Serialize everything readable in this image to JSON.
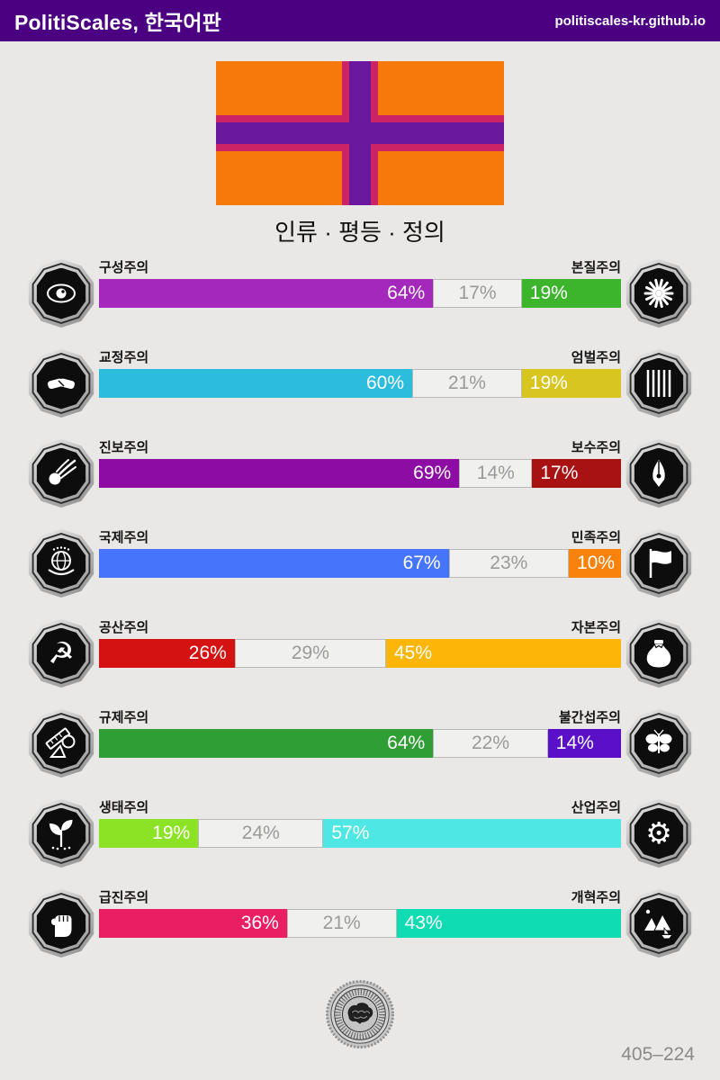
{
  "header": {
    "title": "PolitiScales, 한국어판",
    "url": "politiscales-kr.github.io"
  },
  "flag": {
    "field_color": "#f8790b",
    "cross_color": "#6a189e",
    "cross_border_color": "#cc2366"
  },
  "subtitle": "인류 · 평등 · 정의",
  "axes": [
    {
      "left": {
        "label": "구성주의",
        "percent": 64,
        "percent_label": "64%",
        "color": "#a428bc",
        "icon": "eye-icon"
      },
      "mid": {
        "percent": 17,
        "percent_label": "17%"
      },
      "right": {
        "label": "본질주의",
        "percent": 19,
        "percent_label": "19%",
        "color": "#3cb42c",
        "icon": "chrysanthemum-icon"
      }
    },
    {
      "left": {
        "label": "교정주의",
        "percent": 60,
        "percent_label": "60%",
        "color": "#2cbcdc",
        "icon": "handshake-icon"
      },
      "mid": {
        "percent": 21,
        "percent_label": "21%"
      },
      "right": {
        "label": "엄벌주의",
        "percent": 19,
        "percent_label": "19%",
        "color": "#d9c51f",
        "icon": "prison-bars-icon"
      }
    },
    {
      "left": {
        "label": "진보주의",
        "percent": 69,
        "percent_label": "69%",
        "color": "#8d0ca4",
        "icon": "comet-icon"
      },
      "mid": {
        "percent": 14,
        "percent_label": "14%"
      },
      "right": {
        "label": "보수주의",
        "percent": 17,
        "percent_label": "17%",
        "color": "#a81212",
        "icon": "pen-nib-icon"
      }
    },
    {
      "left": {
        "label": "국제주의",
        "percent": 67,
        "percent_label": "67%",
        "color": "#4674fa",
        "icon": "globe-laurel-icon"
      },
      "mid": {
        "percent": 23,
        "percent_label": "23%"
      },
      "right": {
        "label": "민족주의",
        "percent": 10,
        "percent_label": "10%",
        "color": "#f8820c",
        "icon": "flag-icon"
      }
    },
    {
      "left": {
        "label": "공산주의",
        "percent": 26,
        "percent_label": "26%",
        "color": "#d41212",
        "icon": "hammer-sickle-icon"
      },
      "mid": {
        "percent": 29,
        "percent_label": "29%"
      },
      "right": {
        "label": "자본주의",
        "percent": 45,
        "percent_label": "45%",
        "color": "#fcb608",
        "icon": "money-bag-icon"
      }
    },
    {
      "left": {
        "label": "규제주의",
        "percent": 64,
        "percent_label": "64%",
        "color": "#2f9e34",
        "icon": "ruler-shapes-icon"
      },
      "mid": {
        "percent": 22,
        "percent_label": "22%"
      },
      "right": {
        "label": "불간섭주의",
        "percent": 14,
        "percent_label": "14%",
        "color": "#5a10c8",
        "icon": "butterfly-icon"
      }
    },
    {
      "left": {
        "label": "생태주의",
        "percent": 19,
        "percent_label": "19%",
        "color": "#8ce224",
        "icon": "sprout-icon"
      },
      "mid": {
        "percent": 24,
        "percent_label": "24%"
      },
      "right": {
        "label": "산업주의",
        "percent": 57,
        "percent_label": "57%",
        "color": "#4fe7e3",
        "icon": "gear-icon"
      }
    },
    {
      "left": {
        "label": "급진주의",
        "percent": 36,
        "percent_label": "36%",
        "color": "#ea1e63",
        "icon": "fist-icon"
      },
      "mid": {
        "percent": 21,
        "percent_label": "21%"
      },
      "right": {
        "label": "개혁주의",
        "percent": 43,
        "percent_label": "43%",
        "color": "#10dcb4",
        "icon": "landscape-sailboat-icon"
      }
    }
  ],
  "footer": {
    "code": "405–224",
    "seal_icon": "brain-seal-icon"
  },
  "colors": {
    "header_bg": "#4b0082",
    "page_bg": "#e9e8e6",
    "neutral_segment_bg": "#f0f0ef",
    "neutral_text": "#9a9a9a"
  }
}
